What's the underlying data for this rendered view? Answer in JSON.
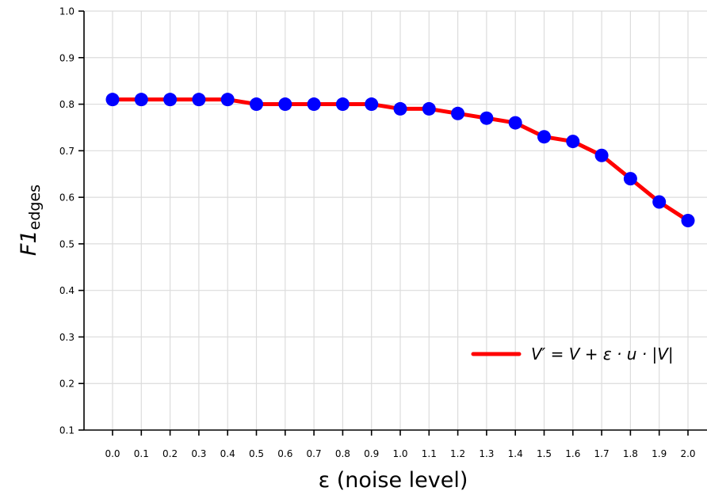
{
  "chart_data": {
    "type": "line",
    "x": [
      0.0,
      0.1,
      0.2,
      0.3,
      0.4,
      0.5,
      0.6,
      0.7,
      0.8,
      0.9,
      1.0,
      1.1,
      1.2,
      1.3,
      1.4,
      1.5,
      1.6,
      1.7,
      1.8,
      1.9,
      2.0
    ],
    "x_tick_labels": [
      "0.0",
      "0.1",
      "0.2",
      "0.3",
      "0.4",
      "0.5",
      "0.6",
      "0.7",
      "0.8",
      "0.9",
      "1.0",
      "1.1",
      "1.2",
      "1.3",
      "1.4",
      "1.5",
      "1.6",
      "1.7",
      "1.8",
      "1.9",
      "2.0"
    ],
    "y_ticks": [
      0.1,
      0.2,
      0.3,
      0.4,
      0.5,
      0.6,
      0.7,
      0.8,
      0.9,
      1.0
    ],
    "y_tick_labels": [
      "0.1",
      "0.2",
      "0.3",
      "0.4",
      "0.5",
      "0.6",
      "0.7",
      "0.8",
      "0.9",
      "1.0"
    ],
    "series": [
      {
        "name": "V′ = V + ε · u · |V|",
        "values": [
          0.81,
          0.81,
          0.81,
          0.81,
          0.81,
          0.8,
          0.8,
          0.8,
          0.8,
          0.8,
          0.79,
          0.79,
          0.78,
          0.77,
          0.76,
          0.73,
          0.72,
          0.69,
          0.64,
          0.59,
          0.55
        ],
        "line_color": "#ff0000",
        "marker_color": "#0000ff"
      }
    ],
    "xlabel": "ε (noise level)",
    "ylabel_main": "F1",
    "ylabel_sub": "edges",
    "ylim": [
      0.1,
      1.0
    ],
    "grid": true,
    "legend_position": "lower-right"
  }
}
